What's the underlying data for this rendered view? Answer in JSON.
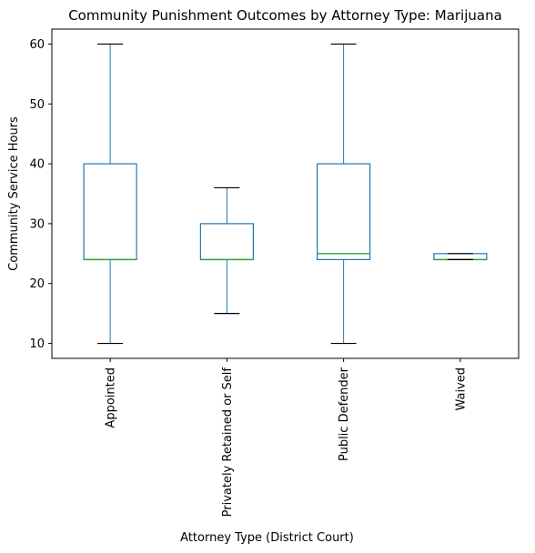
{
  "chart_data": {
    "type": "box",
    "title": "Community Punishment Outcomes by Attorney Type: Marijuana",
    "xlabel": "Attorney Type (District Court)",
    "ylabel": "Community Service Hours",
    "ylim": [
      7.5,
      62.5
    ],
    "yticks": [
      10,
      20,
      30,
      40,
      50,
      60
    ],
    "grid": false,
    "colors": {
      "box": "#1f77b4",
      "median": "#2ca02c",
      "cap": "#000000",
      "axis": "#000000"
    },
    "categories": [
      "Appointed",
      "Privately Retained or Self",
      "Public Defender",
      "Waived"
    ],
    "boxes": [
      {
        "label": "Appointed",
        "whisker_low": 10,
        "q1": 24,
        "median": 24,
        "q3": 40,
        "whisker_high": 60
      },
      {
        "label": "Privately Retained or Self",
        "whisker_low": 15,
        "q1": 24,
        "median": 24,
        "q3": 30,
        "whisker_high": 36
      },
      {
        "label": "Public Defender",
        "whisker_low": 10,
        "q1": 24,
        "median": 25,
        "q3": 40,
        "whisker_high": 60
      },
      {
        "label": "Waived",
        "whisker_low": 24,
        "q1": 24,
        "median": 24,
        "q3": 25,
        "whisker_high": 25
      }
    ]
  }
}
